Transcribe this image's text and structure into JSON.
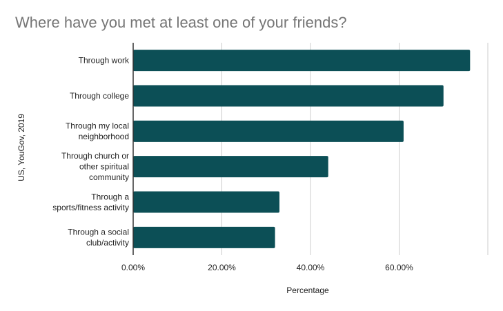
{
  "title": "Where have you met at least one of your friends?",
  "chart_data": {
    "type": "bar",
    "orientation": "horizontal",
    "title": "Where have you met at least one of your friends?",
    "xlabel": "Percentage",
    "ylabel": "US, YouGov, 2019",
    "categories": [
      [
        "Through work"
      ],
      [
        "Through college"
      ],
      [
        "Through my local",
        "neighborhood"
      ],
      [
        "Through church or",
        "other spiritual",
        "community"
      ],
      [
        "Through a",
        "sports/fitness activity"
      ],
      [
        "Through a social",
        "club/activity"
      ]
    ],
    "values": [
      76,
      70,
      61,
      44,
      33,
      32
    ],
    "xlim": [
      0,
      80
    ],
    "xticks": [
      0,
      20,
      40,
      60,
      80
    ],
    "xtick_labels": [
      "0.00%",
      "20.00%",
      "40.00%",
      "60.00%",
      ""
    ],
    "grid": true,
    "bar_color": "#0c4f56",
    "grid_color": "#cccccc"
  }
}
